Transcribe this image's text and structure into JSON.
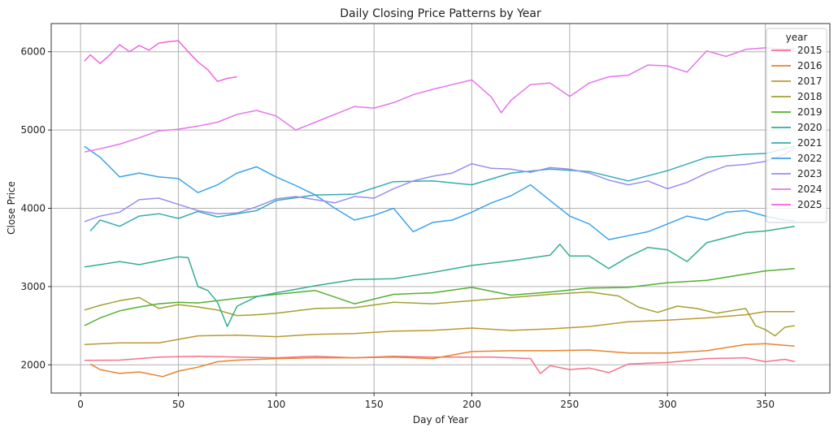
{
  "chart_data": {
    "type": "line",
    "title": "Daily Closing Price Patterns by Year",
    "xlabel": "Day of Year",
    "ylabel": "Close Price",
    "xlim": [
      -15,
      383
    ],
    "ylim": [
      1640,
      6360
    ],
    "xticks": [
      0,
      50,
      100,
      150,
      200,
      250,
      300,
      350
    ],
    "yticks": [
      2000,
      3000,
      4000,
      5000,
      6000
    ],
    "grid": true,
    "legend_title": "year",
    "legend_position": "top-right",
    "series": [
      {
        "name": "2015",
        "color": "#f77189",
        "x": [
          2,
          20,
          40,
          60,
          80,
          100,
          120,
          140,
          160,
          180,
          200,
          210,
          220,
          230,
          235,
          240,
          250,
          260,
          270,
          280,
          300,
          320,
          340,
          350,
          360,
          365
        ],
        "y": [
          2058,
          2060,
          2100,
          2110,
          2100,
          2090,
          2110,
          2090,
          2110,
          2100,
          2100,
          2100,
          2090,
          2080,
          1890,
          1990,
          1940,
          1960,
          1900,
          2010,
          2030,
          2080,
          2090,
          2040,
          2070,
          2040
        ]
      },
      {
        "name": "2016",
        "color": "#e8832c",
        "x": [
          5,
          10,
          20,
          30,
          42,
          50,
          60,
          70,
          80,
          100,
          120,
          140,
          160,
          180,
          200,
          220,
          240,
          260,
          280,
          300,
          320,
          340,
          350,
          365
        ],
        "y": [
          2010,
          1940,
          1890,
          1910,
          1850,
          1920,
          1970,
          2040,
          2060,
          2080,
          2090,
          2090,
          2100,
          2080,
          2170,
          2180,
          2180,
          2190,
          2150,
          2150,
          2180,
          2260,
          2270,
          2240
        ]
      },
      {
        "name": "2017",
        "color": "#bb9832",
        "x": [
          2,
          20,
          40,
          60,
          80,
          100,
          120,
          140,
          160,
          180,
          200,
          220,
          240,
          260,
          280,
          300,
          320,
          340,
          350,
          365
        ],
        "y": [
          2260,
          2280,
          2280,
          2370,
          2380,
          2360,
          2390,
          2400,
          2430,
          2440,
          2470,
          2440,
          2460,
          2490,
          2550,
          2570,
          2600,
          2640,
          2680,
          2680
        ]
      },
      {
        "name": "2018",
        "color": "#a1a131",
        "x": [
          2,
          10,
          20,
          30,
          40,
          50,
          60,
          70,
          80,
          90,
          100,
          120,
          140,
          160,
          180,
          200,
          220,
          240,
          260,
          275,
          285,
          295,
          305,
          315,
          325,
          340,
          345,
          350,
          355,
          360,
          365
        ],
        "y": [
          2700,
          2760,
          2820,
          2860,
          2720,
          2770,
          2740,
          2700,
          2630,
          2640,
          2660,
          2720,
          2730,
          2800,
          2780,
          2820,
          2860,
          2900,
          2930,
          2880,
          2740,
          2670,
          2750,
          2720,
          2660,
          2720,
          2500,
          2450,
          2370,
          2480,
          2500
        ]
      },
      {
        "name": "2019",
        "color": "#50b131",
        "x": [
          2,
          10,
          20,
          30,
          40,
          50,
          60,
          70,
          80,
          100,
          120,
          140,
          160,
          180,
          200,
          220,
          240,
          260,
          280,
          300,
          320,
          340,
          350,
          365
        ],
        "y": [
          2500,
          2600,
          2690,
          2740,
          2780,
          2800,
          2790,
          2820,
          2850,
          2900,
          2950,
          2780,
          2900,
          2920,
          2990,
          2890,
          2930,
          2980,
          2990,
          3050,
          3080,
          3160,
          3200,
          3230
        ]
      },
      {
        "name": "2020",
        "color": "#34ae91",
        "x": [
          2,
          10,
          20,
          30,
          40,
          50,
          55,
          60,
          65,
          70,
          75,
          80,
          90,
          100,
          120,
          140,
          160,
          180,
          200,
          220,
          240,
          245,
          250,
          260,
          270,
          280,
          290,
          300,
          310,
          320,
          340,
          350,
          365
        ],
        "y": [
          3250,
          3280,
          3320,
          3280,
          3330,
          3380,
          3370,
          3000,
          2950,
          2800,
          2490,
          2750,
          2870,
          2920,
          3010,
          3090,
          3100,
          3180,
          3270,
          3330,
          3400,
          3540,
          3390,
          3390,
          3230,
          3380,
          3500,
          3470,
          3320,
          3560,
          3690,
          3710,
          3770
        ]
      },
      {
        "name": "2021",
        "color": "#37abb4",
        "x": [
          5,
          10,
          20,
          30,
          40,
          50,
          60,
          70,
          80,
          90,
          100,
          120,
          140,
          160,
          180,
          200,
          220,
          240,
          260,
          280,
          300,
          320,
          340,
          350,
          365
        ],
        "y": [
          3710,
          3850,
          3770,
          3900,
          3930,
          3870,
          3960,
          3890,
          3930,
          3970,
          4100,
          4170,
          4180,
          4340,
          4350,
          4300,
          4450,
          4500,
          4470,
          4350,
          4480,
          4650,
          4690,
          4700,
          4790
        ]
      },
      {
        "name": "2022",
        "color": "#3ba3ec",
        "x": [
          2,
          10,
          20,
          30,
          40,
          50,
          60,
          70,
          80,
          90,
          100,
          110,
          120,
          130,
          140,
          150,
          160,
          170,
          180,
          190,
          200,
          210,
          220,
          230,
          240,
          250,
          260,
          270,
          280,
          290,
          300,
          310,
          320,
          330,
          340,
          350,
          360,
          365
        ],
        "y": [
          4790,
          4650,
          4400,
          4450,
          4400,
          4380,
          4200,
          4300,
          4450,
          4530,
          4400,
          4290,
          4170,
          4000,
          3850,
          3910,
          4000,
          3700,
          3820,
          3850,
          3950,
          4070,
          4160,
          4300,
          4100,
          3900,
          3800,
          3600,
          3650,
          3700,
          3800,
          3900,
          3850,
          3950,
          3970,
          3900,
          3850,
          3840
        ]
      },
      {
        "name": "2023",
        "color": "#978ef1",
        "x": [
          2,
          10,
          20,
          30,
          40,
          50,
          60,
          70,
          80,
          90,
          100,
          110,
          120,
          130,
          140,
          150,
          160,
          170,
          180,
          190,
          200,
          210,
          220,
          230,
          240,
          250,
          260,
          270,
          280,
          290,
          300,
          310,
          320,
          330,
          340,
          350,
          360,
          365
        ],
        "y": [
          3830,
          3900,
          3950,
          4110,
          4130,
          4050,
          3970,
          3930,
          3940,
          4020,
          4120,
          4150,
          4110,
          4070,
          4150,
          4130,
          4250,
          4350,
          4410,
          4450,
          4570,
          4510,
          4500,
          4460,
          4520,
          4500,
          4450,
          4360,
          4300,
          4350,
          4250,
          4330,
          4450,
          4540,
          4560,
          4600,
          4690,
          4770
        ]
      },
      {
        "name": "2024",
        "color": "#e476ea",
        "x": [
          2,
          10,
          20,
          30,
          40,
          50,
          60,
          70,
          80,
          90,
          100,
          110,
          120,
          130,
          140,
          150,
          160,
          170,
          180,
          190,
          200,
          210,
          215,
          220,
          230,
          240,
          250,
          260,
          270,
          280,
          290,
          300,
          310,
          320,
          330,
          340,
          350,
          360,
          365
        ],
        "y": [
          4720,
          4760,
          4820,
          4900,
          4990,
          5010,
          5050,
          5100,
          5200,
          5250,
          5180,
          5000,
          5100,
          5200,
          5300,
          5280,
          5350,
          5450,
          5520,
          5580,
          5640,
          5420,
          5220,
          5380,
          5580,
          5600,
          5430,
          5600,
          5680,
          5700,
          5830,
          5820,
          5740,
          6010,
          5940,
          6030,
          6050,
          6030,
          6040
        ]
      },
      {
        "name": "2025",
        "color": "#f461dd",
        "x": [
          2,
          5,
          10,
          15,
          20,
          25,
          30,
          35,
          40,
          45,
          50,
          55,
          60,
          65,
          70,
          75,
          80
        ],
        "y": [
          5880,
          5960,
          5850,
          5960,
          6090,
          6000,
          6080,
          6020,
          6110,
          6130,
          6140,
          6000,
          5870,
          5770,
          5620,
          5660,
          5680
        ]
      }
    ]
  }
}
